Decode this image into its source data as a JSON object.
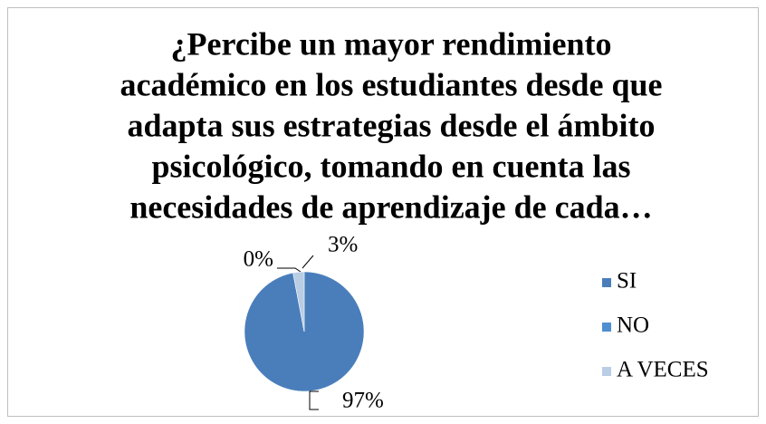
{
  "chart_data": {
    "type": "pie",
    "title": [
      "¿Percibe un mayor rendimiento",
      "académico en los estudiantes desde que",
      "adapta sus estrategias desde el ámbito",
      "psicológico, tomando en cuenta las",
      "necesidades de aprendizaje de cada…"
    ],
    "categories": [
      "SI",
      "NO",
      "A VECES"
    ],
    "values": [
      97,
      0,
      3
    ],
    "value_labels": [
      "97%",
      "0%",
      "3%"
    ],
    "colors": [
      "#4a7ebb",
      "#4f8fd0",
      "#b9cde5"
    ],
    "legend": "right"
  }
}
